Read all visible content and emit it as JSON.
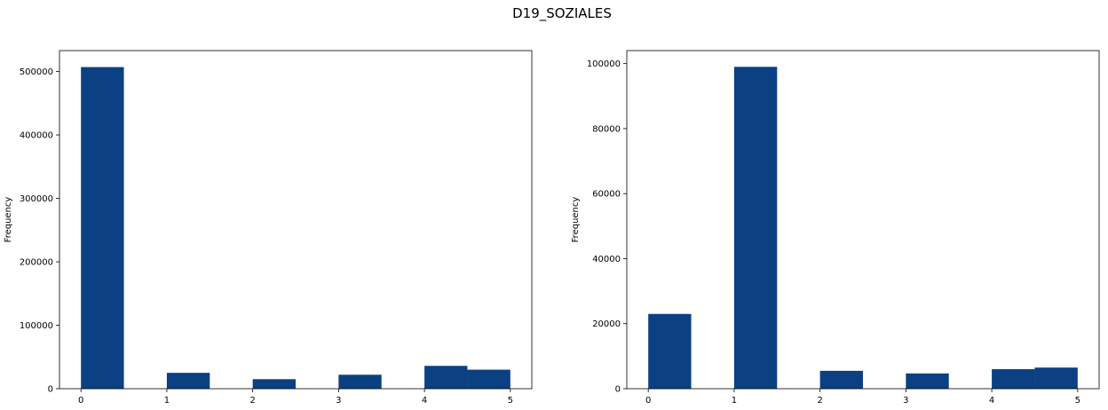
{
  "chart_data": {
    "type": "bar",
    "suptitle": "D19_SOZIALES",
    "bar_color": "#0b4083",
    "subplots": [
      {
        "title": "",
        "xlabel": "",
        "ylabel": "Frequency",
        "xlim": [
          -0.25,
          5.25
        ],
        "ylim": [
          0,
          533000
        ],
        "xticks": [
          0,
          1,
          2,
          3,
          4,
          5
        ],
        "xtick_labels": [
          "0",
          "1",
          "2",
          "3",
          "4",
          "5"
        ],
        "yticks": [
          0,
          100000,
          200000,
          300000,
          400000,
          500000
        ],
        "ytick_labels": [
          "0",
          "100000",
          "200000",
          "300000",
          "400000",
          "500000"
        ],
        "bins": [
          {
            "x0": 0.0,
            "x1": 0.5,
            "value": 507000
          },
          {
            "x0": 1.0,
            "x1": 1.5,
            "value": 25000
          },
          {
            "x0": 2.0,
            "x1": 2.5,
            "value": 15000
          },
          {
            "x0": 3.0,
            "x1": 3.5,
            "value": 22000
          },
          {
            "x0": 4.0,
            "x1": 4.5,
            "value": 36000
          },
          {
            "x0": 4.5,
            "x1": 5.0,
            "value": 30000
          }
        ]
      },
      {
        "title": "",
        "xlabel": "",
        "ylabel": "Frequency",
        "xlim": [
          -0.25,
          5.25
        ],
        "ylim": [
          0,
          104000
        ],
        "xticks": [
          0,
          1,
          2,
          3,
          4,
          5
        ],
        "xtick_labels": [
          "0",
          "1",
          "2",
          "3",
          "4",
          "5"
        ],
        "yticks": [
          0,
          20000,
          40000,
          60000,
          80000,
          100000
        ],
        "ytick_labels": [
          "0",
          "20000",
          "40000",
          "60000",
          "80000",
          "100000"
        ],
        "bins": [
          {
            "x0": 0.0,
            "x1": 0.5,
            "value": 23000
          },
          {
            "x0": 1.0,
            "x1": 1.5,
            "value": 99000
          },
          {
            "x0": 2.0,
            "x1": 2.5,
            "value": 5500
          },
          {
            "x0": 3.0,
            "x1": 3.5,
            "value": 4700
          },
          {
            "x0": 4.0,
            "x1": 4.5,
            "value": 6000
          },
          {
            "x0": 4.5,
            "x1": 5.0,
            "value": 6500
          }
        ]
      }
    ]
  }
}
